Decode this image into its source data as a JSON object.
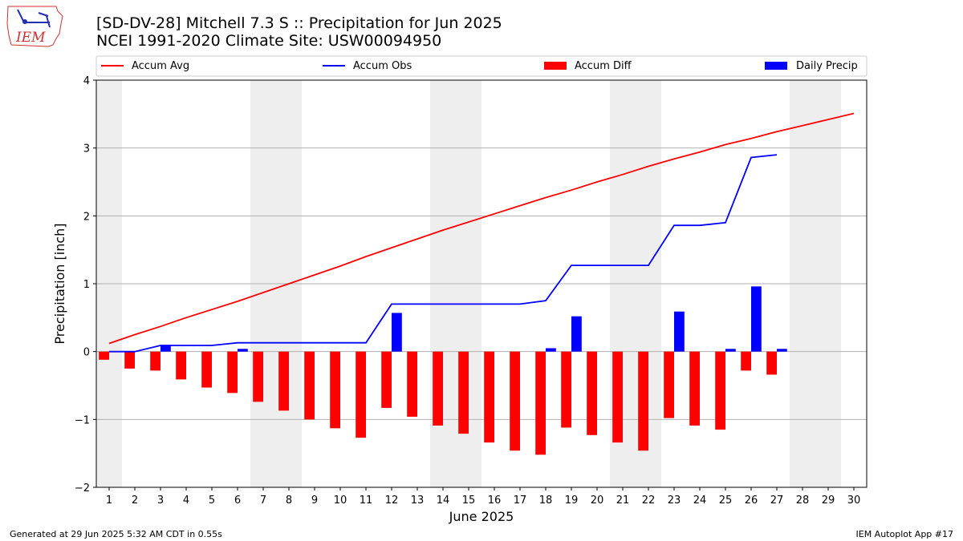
{
  "header": {
    "title_line1": "[SD-DV-28] Mitchell 7.3 S :: Precipitation for Jun 2025",
    "title_line2": "NCEI 1991-2020 Climate Site: USW00094950",
    "logo_text": "IEM"
  },
  "footer": {
    "left": "Generated at 29 Jun 2025 5:32 AM CDT in 0.55s",
    "right": "IEM Autoplot App #17"
  },
  "colors": {
    "accum_avg": "#ff0000",
    "accum_obs": "#0000ff",
    "accum_diff": "#ff0000",
    "daily_precip": "#0000ff",
    "weekend_shade": "#eeeeee",
    "grid": "#b0b0b0"
  },
  "chart_data": {
    "type": "bar",
    "xlabel": "June 2025",
    "ylabel": "Precipitation [inch]",
    "xlim": [
      0.5,
      30.5
    ],
    "ylim": [
      -2,
      4
    ],
    "yticks": [
      -2,
      -1,
      0,
      1,
      2,
      3,
      4
    ],
    "ytick_labels": [
      "−2",
      "−1",
      "0",
      "1",
      "2",
      "3",
      "4"
    ],
    "grid_y": true,
    "legend_placement": "top",
    "days": [
      1,
      2,
      3,
      4,
      5,
      6,
      7,
      8,
      9,
      10,
      11,
      12,
      13,
      14,
      15,
      16,
      17,
      18,
      19,
      20,
      21,
      22,
      23,
      24,
      25,
      26,
      27,
      28,
      29,
      30
    ],
    "day_labels": [
      "1",
      "2",
      "3",
      "4",
      "5",
      "6",
      "7",
      "8",
      "9",
      "10",
      "11",
      "12",
      "13",
      "14",
      "15",
      "16",
      "17",
      "18",
      "19",
      "20",
      "21",
      "22",
      "23",
      "24",
      "25",
      "26",
      "27",
      "28",
      "29",
      "30"
    ],
    "weekend_days": [
      1,
      7,
      8,
      14,
      15,
      21,
      22,
      28,
      29
    ],
    "series": [
      {
        "name": "Accum Avg",
        "kind": "line",
        "x": [
          1,
          2,
          3,
          4,
          5,
          6,
          7,
          8,
          9,
          10,
          11,
          12,
          13,
          14,
          15,
          16,
          17,
          18,
          19,
          20,
          21,
          22,
          23,
          24,
          25,
          26,
          27,
          28,
          29,
          30
        ],
        "values": [
          0.12,
          0.25,
          0.37,
          0.5,
          0.62,
          0.74,
          0.87,
          1.0,
          1.13,
          1.26,
          1.4,
          1.53,
          1.66,
          1.79,
          1.91,
          2.03,
          2.15,
          2.27,
          2.38,
          2.5,
          2.61,
          2.73,
          2.84,
          2.94,
          3.05,
          3.14,
          3.24,
          3.33,
          3.42,
          3.51
        ]
      },
      {
        "name": "Accum Obs",
        "kind": "line",
        "x": [
          1,
          2,
          3,
          4,
          5,
          6,
          7,
          8,
          9,
          10,
          11,
          12,
          13,
          14,
          15,
          16,
          17,
          18,
          19,
          20,
          21,
          22,
          23,
          24,
          25,
          26,
          27
        ],
        "values": [
          0.0,
          0.0,
          0.09,
          0.09,
          0.09,
          0.13,
          0.13,
          0.13,
          0.13,
          0.13,
          0.13,
          0.7,
          0.7,
          0.7,
          0.7,
          0.7,
          0.7,
          0.75,
          1.27,
          1.27,
          1.27,
          1.27,
          1.86,
          1.86,
          1.9,
          2.86,
          2.9
        ]
      },
      {
        "name": "Accum Diff",
        "kind": "bar",
        "x": [
          1,
          2,
          3,
          4,
          5,
          6,
          7,
          8,
          9,
          10,
          11,
          12,
          13,
          14,
          15,
          16,
          17,
          18,
          19,
          20,
          21,
          22,
          23,
          24,
          25,
          26,
          27
        ],
        "values": [
          -0.12,
          -0.25,
          -0.28,
          -0.41,
          -0.53,
          -0.61,
          -0.74,
          -0.87,
          -1.0,
          -1.13,
          -1.27,
          -0.83,
          -0.96,
          -1.09,
          -1.21,
          -1.34,
          -1.46,
          -1.52,
          -1.12,
          -1.23,
          -1.34,
          -1.46,
          -0.98,
          -1.09,
          -1.15,
          -0.28,
          -0.34
        ]
      },
      {
        "name": "Daily Precip",
        "kind": "bar",
        "x": [
          1,
          2,
          3,
          4,
          5,
          6,
          7,
          8,
          9,
          10,
          11,
          12,
          13,
          14,
          15,
          16,
          17,
          18,
          19,
          20,
          21,
          22,
          23,
          24,
          25,
          26,
          27
        ],
        "values": [
          0,
          0,
          0.09,
          0,
          0,
          0.04,
          0,
          0,
          0,
          0,
          0,
          0.57,
          0,
          0,
          0,
          0,
          0,
          0.05,
          0.52,
          0,
          0,
          0,
          0.59,
          0,
          0.04,
          0.96,
          0.04
        ]
      }
    ]
  }
}
